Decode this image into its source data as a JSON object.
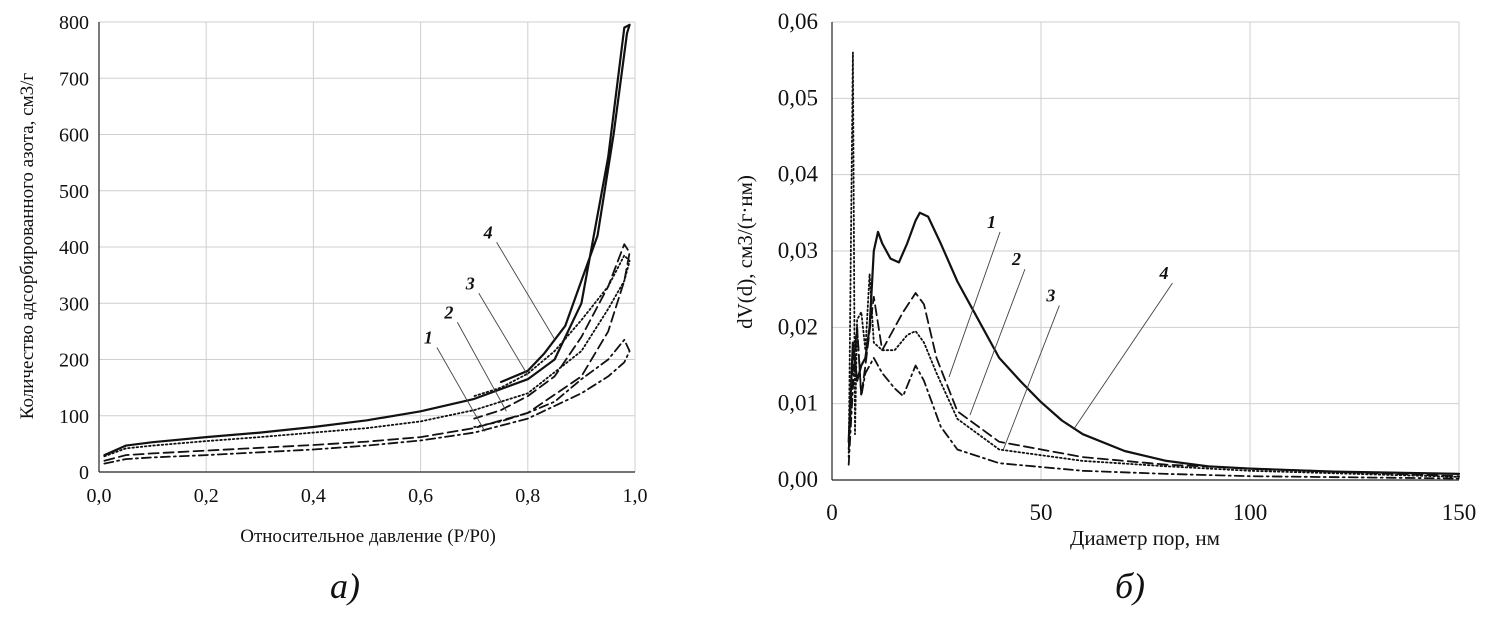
{
  "panels": [
    {
      "panel_label": "a)",
      "chart_data": {
        "type": "line",
        "title": "",
        "xlabel": "Относительное давление (P/P0)",
        "ylabel": "Количество адсорбированного азота, см3/г",
        "xlim": [
          0,
          1
        ],
        "ylim": [
          0,
          800
        ],
        "grid": true,
        "x_ticks": [
          "0,0",
          "0,2",
          "0,4",
          "0,6",
          "0,8",
          "1,0"
        ],
        "y_ticks": [
          "0",
          "100",
          "200",
          "300",
          "400",
          "500",
          "600",
          "700",
          "800"
        ],
        "series": [
          {
            "name": "1",
            "style": "dashdot",
            "adsorption": [
              [
                0.01,
                15
              ],
              [
                0.05,
                23
              ],
              [
                0.1,
                26
              ],
              [
                0.2,
                30
              ],
              [
                0.3,
                35
              ],
              [
                0.4,
                40
              ],
              [
                0.5,
                47
              ],
              [
                0.6,
                56
              ],
              [
                0.7,
                70
              ],
              [
                0.8,
                95
              ],
              [
                0.9,
                140
              ],
              [
                0.95,
                170
              ],
              [
                0.98,
                195
              ],
              [
                0.99,
                215
              ]
            ],
            "desorption": [
              [
                0.99,
                215
              ],
              [
                0.98,
                235
              ],
              [
                0.95,
                200
              ],
              [
                0.9,
                165
              ],
              [
                0.85,
                125
              ],
              [
                0.8,
                105
              ],
              [
                0.75,
                90
              ],
              [
                0.7,
                80
              ]
            ]
          },
          {
            "name": "2",
            "style": "longdash",
            "adsorption": [
              [
                0.01,
                20
              ],
              [
                0.05,
                30
              ],
              [
                0.1,
                33
              ],
              [
                0.2,
                38
              ],
              [
                0.3,
                43
              ],
              [
                0.4,
                48
              ],
              [
                0.5,
                54
              ],
              [
                0.6,
                62
              ],
              [
                0.7,
                78
              ],
              [
                0.8,
                105
              ],
              [
                0.9,
                170
              ],
              [
                0.95,
                250
              ],
              [
                0.98,
                340
              ],
              [
                0.99,
                390
              ]
            ],
            "desorption": [
              [
                0.99,
                390
              ],
              [
                0.98,
                405
              ],
              [
                0.95,
                330
              ],
              [
                0.9,
                240
              ],
              [
                0.85,
                170
              ],
              [
                0.8,
                135
              ],
              [
                0.75,
                110
              ],
              [
                0.7,
                95
              ]
            ]
          },
          {
            "name": "3",
            "style": "dotted",
            "adsorption": [
              [
                0.01,
                28
              ],
              [
                0.05,
                42
              ],
              [
                0.1,
                47
              ],
              [
                0.2,
                55
              ],
              [
                0.3,
                62
              ],
              [
                0.4,
                70
              ],
              [
                0.5,
                78
              ],
              [
                0.6,
                90
              ],
              [
                0.7,
                110
              ],
              [
                0.8,
                140
              ],
              [
                0.9,
                215
              ],
              [
                0.95,
                290
              ],
              [
                0.98,
                340
              ],
              [
                0.99,
                375
              ]
            ],
            "desorption": [
              [
                0.99,
                375
              ],
              [
                0.98,
                385
              ],
              [
                0.95,
                330
              ],
              [
                0.9,
                270
              ],
              [
                0.85,
                215
              ],
              [
                0.8,
                175
              ],
              [
                0.75,
                150
              ],
              [
                0.7,
                135
              ]
            ]
          },
          {
            "name": "4",
            "style": "solid",
            "adsorption": [
              [
                0.01,
                30
              ],
              [
                0.05,
                47
              ],
              [
                0.1,
                53
              ],
              [
                0.2,
                62
              ],
              [
                0.3,
                70
              ],
              [
                0.4,
                80
              ],
              [
                0.5,
                92
              ],
              [
                0.6,
                108
              ],
              [
                0.7,
                130
              ],
              [
                0.8,
                165
              ],
              [
                0.85,
                200
              ],
              [
                0.9,
                300
              ],
              [
                0.95,
                560
              ],
              [
                0.98,
                790
              ],
              [
                0.99,
                795
              ]
            ],
            "desorption": [
              [
                0.99,
                795
              ],
              [
                0.985,
                780
              ],
              [
                0.96,
                600
              ],
              [
                0.93,
                420
              ],
              [
                0.9,
                340
              ],
              [
                0.87,
                260
              ],
              [
                0.83,
                210
              ],
              [
                0.8,
                180
              ],
              [
                0.75,
                160
              ]
            ]
          }
        ],
        "annotations": [
          {
            "text": "1",
            "series": "1",
            "x": 0.72,
            "y": 72
          },
          {
            "text": "2",
            "series": "2",
            "x": 0.76,
            "y": 108
          },
          {
            "text": "3",
            "series": "3",
            "x": 0.8,
            "y": 172
          },
          {
            "text": "4",
            "series": "4",
            "x": 0.85,
            "y": 236
          }
        ]
      }
    },
    {
      "panel_label": "б)",
      "chart_data": {
        "type": "line",
        "title": "",
        "xlabel": "Диаметр пор, нм",
        "ylabel": "dV(d), см3/(г·нм)",
        "xlim": [
          0,
          150
        ],
        "ylim": [
          0,
          0.06
        ],
        "grid": true,
        "x_ticks": [
          "0",
          "50",
          "100",
          "150"
        ],
        "y_ticks": [
          "0,00",
          "0,01",
          "0,02",
          "0,03",
          "0,04",
          "0,05",
          "0,06"
        ],
        "series": [
          {
            "name": "1",
            "style": "dashdot",
            "points": [
              [
                4,
                0.002
              ],
              [
                5,
                0.012
              ],
              [
                6,
                0.02
              ],
              [
                7,
                0.011
              ],
              [
                8,
                0.014
              ],
              [
                10,
                0.016
              ],
              [
                12,
                0.014
              ],
              [
                15,
                0.012
              ],
              [
                17,
                0.011
              ],
              [
                20,
                0.015
              ],
              [
                22,
                0.013
              ],
              [
                26,
                0.007
              ],
              [
                30,
                0.004
              ],
              [
                40,
                0.0022
              ],
              [
                60,
                0.0012
              ],
              [
                80,
                0.0008
              ],
              [
                100,
                0.0005
              ],
              [
                150,
                0.0002
              ]
            ]
          },
          {
            "name": "2",
            "style": "longdash",
            "points": [
              [
                4,
                0.004
              ],
              [
                5,
                0.015
              ],
              [
                6,
                0.02
              ],
              [
                7,
                0.011
              ],
              [
                8,
                0.015
              ],
              [
                10,
                0.024
              ],
              [
                12,
                0.017
              ],
              [
                14,
                0.019
              ],
              [
                17,
                0.022
              ],
              [
                20,
                0.0245
              ],
              [
                22,
                0.023
              ],
              [
                25,
                0.016
              ],
              [
                30,
                0.009
              ],
              [
                40,
                0.005
              ],
              [
                60,
                0.003
              ],
              [
                80,
                0.002
              ],
              [
                100,
                0.0015
              ],
              [
                150,
                0.0005
              ]
            ]
          },
          {
            "name": "3",
            "style": "dotted",
            "points": [
              [
                4,
                0.003
              ],
              [
                5,
                0.056
              ],
              [
                5.5,
                0.006
              ],
              [
                6,
                0.021
              ],
              [
                7,
                0.022
              ],
              [
                8,
                0.017
              ],
              [
                9,
                0.027
              ],
              [
                10,
                0.018
              ],
              [
                12,
                0.017
              ],
              [
                15,
                0.017
              ],
              [
                18,
                0.019
              ],
              [
                20,
                0.0195
              ],
              [
                22,
                0.018
              ],
              [
                25,
                0.014
              ],
              [
                30,
                0.008
              ],
              [
                40,
                0.004
              ],
              [
                60,
                0.0025
              ],
              [
                80,
                0.0018
              ],
              [
                100,
                0.0012
              ],
              [
                150,
                0.0004
              ]
            ]
          },
          {
            "name": "4",
            "style": "solid",
            "points": [
              [
                4,
                0.005
              ],
              [
                5,
                0.018
              ],
              [
                6,
                0.013
              ],
              [
                7,
                0.015
              ],
              [
                8,
                0.016
              ],
              [
                9,
                0.02
              ],
              [
                10,
                0.03
              ],
              [
                11,
                0.0325
              ],
              [
                12,
                0.031
              ],
              [
                14,
                0.029
              ],
              [
                16,
                0.0285
              ],
              [
                18,
                0.031
              ],
              [
                20,
                0.034
              ],
              [
                21,
                0.035
              ],
              [
                23,
                0.0345
              ],
              [
                26,
                0.031
              ],
              [
                30,
                0.026
              ],
              [
                35,
                0.021
              ],
              [
                40,
                0.016
              ],
              [
                45,
                0.013
              ],
              [
                50,
                0.0102
              ],
              [
                55,
                0.0078
              ],
              [
                60,
                0.006
              ],
              [
                70,
                0.0038
              ],
              [
                80,
                0.0025
              ],
              [
                90,
                0.0018
              ],
              [
                100,
                0.0015
              ],
              [
                120,
                0.0011
              ],
              [
                150,
                0.0008
              ]
            ]
          }
        ],
        "annotations": [
          {
            "text": "1",
            "series": "1",
            "x": 28,
            "y": 0.0135
          },
          {
            "text": "2",
            "series": "2",
            "x": 33,
            "y": 0.0085
          },
          {
            "text": "3",
            "series": "3",
            "x": 41,
            "y": 0.004
          },
          {
            "text": "4",
            "series": "4",
            "x": 58,
            "y": 0.0068
          }
        ]
      }
    }
  ]
}
